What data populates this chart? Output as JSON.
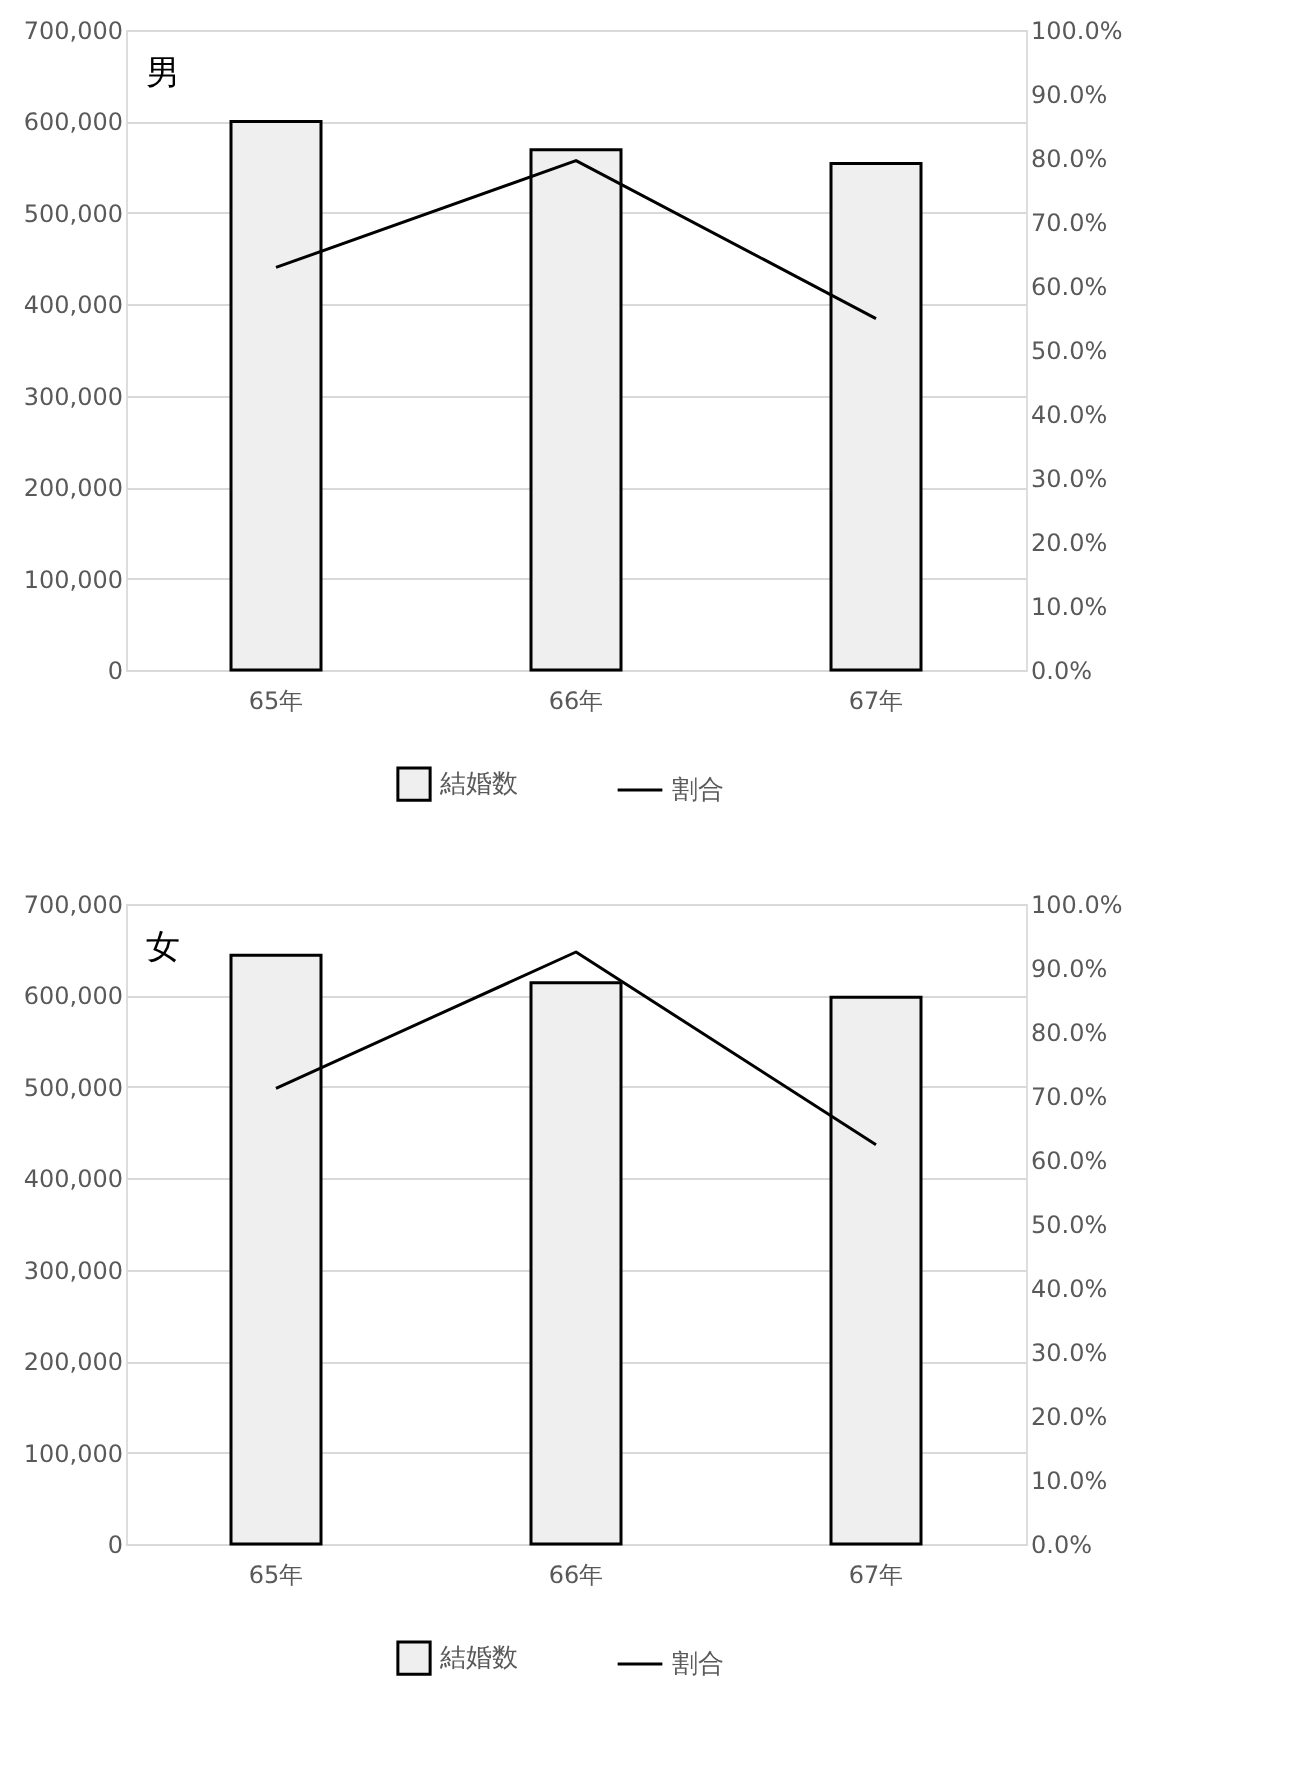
{
  "chart_data": [
    {
      "type": "bar",
      "title": "男",
      "categories": [
        "65年",
        "66年",
        "67年"
      ],
      "series": [
        {
          "name": "結婚数",
          "color": "#efefef",
          "values": [
            600000,
            569000,
            554000
          ]
        },
        {
          "name": "割合",
          "type": "line",
          "axis": "y2",
          "color": "#000000",
          "values": [
            62.9,
            79.6,
            54.9
          ]
        }
      ],
      "ylim": [
        0,
        700000
      ],
      "yticks": [
        {
          "value": 0,
          "label": "0"
        },
        {
          "value": 100000,
          "label": "100,000"
        },
        {
          "value": 200000,
          "label": "200,000"
        },
        {
          "value": 300000,
          "label": "300,000"
        },
        {
          "value": 400000,
          "label": "400,000"
        },
        {
          "value": 500000,
          "label": "500,000"
        },
        {
          "value": 600000,
          "label": "600,000"
        },
        {
          "value": 700000,
          "label": "700,000"
        }
      ],
      "y2lim": [
        0,
        100
      ],
      "y2ticks": [
        {
          "value": 0,
          "label": "0.0%"
        },
        {
          "value": 10,
          "label": "10.0%"
        },
        {
          "value": 20,
          "label": "20.0%"
        },
        {
          "value": 30,
          "label": "30.0%"
        },
        {
          "value": 40,
          "label": "40.0%"
        },
        {
          "value": 50,
          "label": "50.0%"
        },
        {
          "value": 60,
          "label": "60.0%"
        },
        {
          "value": 70,
          "label": "70.0%"
        },
        {
          "value": 80,
          "label": "80.0%"
        },
        {
          "value": 90,
          "label": "90.0%"
        },
        {
          "value": 100,
          "label": "100.0%"
        }
      ],
      "grid": "y",
      "legend": "bottom",
      "line_style": "solid",
      "marker": "none"
    },
    {
      "type": "bar",
      "title": "女",
      "categories": [
        "65年",
        "66年",
        "67年"
      ],
      "series": [
        {
          "name": "結婚数",
          "color": "#efefef",
          "values": [
            644000,
            614000,
            598000
          ]
        },
        {
          "name": "割合",
          "type": "line",
          "axis": "y2",
          "color": "#000000",
          "values": [
            71.2,
            92.5,
            62.4
          ]
        }
      ],
      "ylim": [
        0,
        700000
      ],
      "yticks": [
        {
          "value": 0,
          "label": "0"
        },
        {
          "value": 100000,
          "label": "100,000"
        },
        {
          "value": 200000,
          "label": "200,000"
        },
        {
          "value": 300000,
          "label": "300,000"
        },
        {
          "value": 400000,
          "label": "400,000"
        },
        {
          "value": 500000,
          "label": "500,000"
        },
        {
          "value": 600000,
          "label": "600,000"
        },
        {
          "value": 700000,
          "label": "700,000"
        }
      ],
      "y2lim": [
        0,
        100
      ],
      "y2ticks": [
        {
          "value": 0,
          "label": "0.0%"
        },
        {
          "value": 10,
          "label": "10.0%"
        },
        {
          "value": 20,
          "label": "20.0%"
        },
        {
          "value": 30,
          "label": "30.0%"
        },
        {
          "value": 40,
          "label": "40.0%"
        },
        {
          "value": 50,
          "label": "50.0%"
        },
        {
          "value": 60,
          "label": "60.0%"
        },
        {
          "value": 70,
          "label": "70.0%"
        },
        {
          "value": 80,
          "label": "80.0%"
        },
        {
          "value": 90,
          "label": "90.0%"
        },
        {
          "value": 100,
          "label": "100.0%"
        }
      ],
      "grid": "y",
      "legend": "bottom",
      "line_style": "solid",
      "marker": "none"
    }
  ]
}
